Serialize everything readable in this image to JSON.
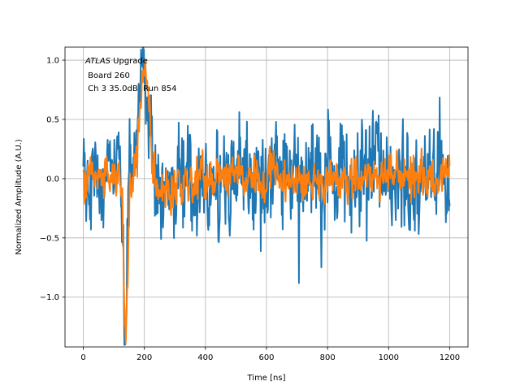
{
  "chart_data": {
    "type": "line",
    "xlabel": "Time [ns]",
    "ylabel": "Normalized Amplitude (A.U.)",
    "xlim": [
      -60,
      1260
    ],
    "ylim": [
      -1.42,
      1.11
    ],
    "xticks": [
      0,
      200,
      400,
      600,
      800,
      1000,
      1200
    ],
    "yticks": [
      -1.0,
      -0.5,
      0.0,
      0.5,
      1.0
    ],
    "xtick_labels": [
      "0",
      "200",
      "400",
      "600",
      "800",
      "1000",
      "1200"
    ],
    "ytick_labels": [
      "−1.0",
      "−0.5",
      "0.0",
      "0.5",
      "1.0"
    ],
    "grid": true,
    "annotation": {
      "line1_italic": "ATLAS",
      "line1_rest": " Upgrade",
      "line2": " Board 260",
      "line3": " Ch 3 35.0dB  Run 854"
    },
    "x_range": [
      0,
      1200
    ],
    "x_step": 1.5625,
    "series": [
      {
        "color": "#1f77b4",
        "noise_amplitude": 0.21,
        "pulse": {
          "neg_peak_time": 137,
          "neg_peak_value": -1.28,
          "pos_peak_time": 198,
          "pos_peak_value": 0.95
        }
      },
      {
        "color": "#ff7f0e",
        "noise_amplitude": 0.085,
        "pulse": {
          "neg_peak_time": 139,
          "neg_peak_value": -1.29,
          "pos_peak_time": 200,
          "pos_peak_value": 1.0
        }
      }
    ]
  }
}
